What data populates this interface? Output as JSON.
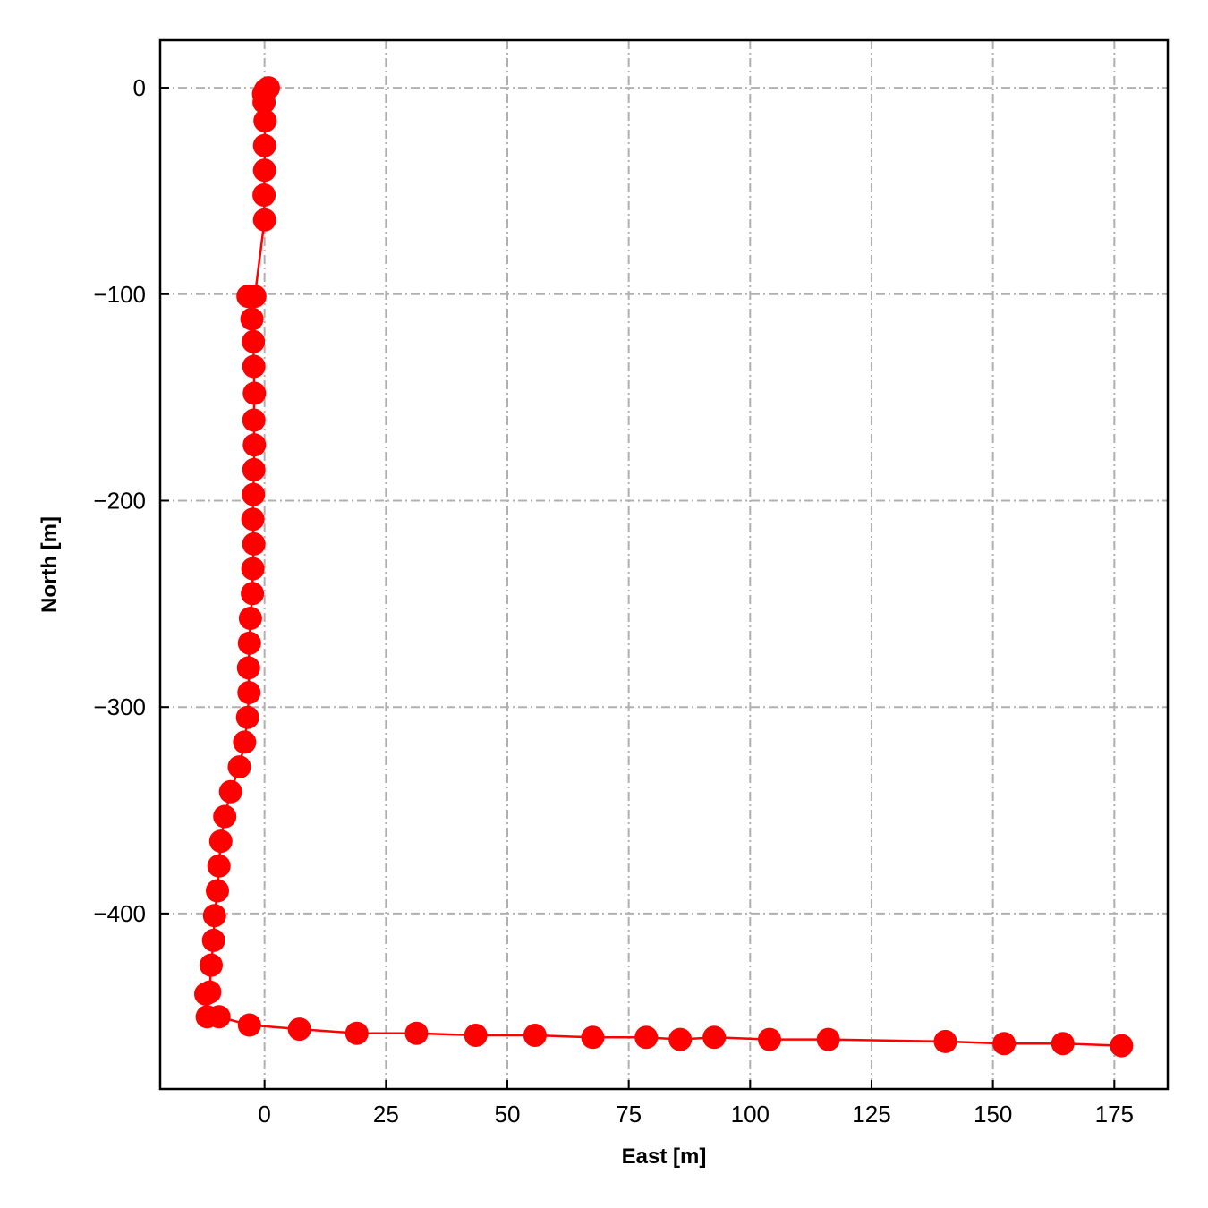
{
  "chart_data": {
    "type": "line",
    "title": "",
    "xlabel": "East [m]",
    "ylabel": "North [m]",
    "xlim": [
      -21.5,
      186
    ],
    "ylim": [
      -485,
      23
    ],
    "x_ticks": [
      0,
      25,
      50,
      75,
      100,
      125,
      150,
      175
    ],
    "y_ticks": [
      0,
      -100,
      -200,
      -300,
      -400
    ],
    "x_tick_labels": [
      "0",
      "25",
      "50",
      "75",
      "100",
      "125",
      "150",
      "175"
    ],
    "y_tick_labels": [
      "0",
      "−100",
      "−200",
      "−300",
      "−400"
    ],
    "grid": true,
    "legend": "none",
    "series": [
      {
        "color": "#ff0000",
        "marker": "circle",
        "x": [
          0.8,
          0.2,
          -0.2,
          -0.1,
          0.1,
          0.0,
          0.0,
          -0.1,
          0.0,
          -2.0,
          -3.4,
          -2.6,
          -2.3,
          -2.2,
          -2.1,
          -2.2,
          -2.1,
          -2.2,
          -2.3,
          -2.4,
          -2.2,
          -2.4,
          -2.5,
          -2.9,
          -3.1,
          -3.3,
          -3.2,
          -3.5,
          -4.1,
          -5.2,
          -7.0,
          -8.2,
          -9.0,
          -9.4,
          -9.7,
          -10.3,
          -10.5,
          -11.0,
          -11.3,
          -12.1,
          -11.8,
          -9.4,
          -3.1,
          7.2,
          19.0,
          31.3,
          43.5,
          55.7,
          67.6,
          78.6,
          85.6,
          92.6,
          104.0,
          116.1,
          140.2,
          152.3,
          164.4,
          176.5
        ],
        "y": [
          0,
          -1,
          -3,
          -7,
          -16,
          -28,
          -40,
          -52,
          -64,
          -101,
          -101,
          -112,
          -123,
          -135,
          -148,
          -161,
          -173,
          -185,
          -197,
          -209,
          -221,
          -233,
          -245,
          -257,
          -269,
          -281,
          -293,
          -305,
          -317,
          -329,
          -341,
          -353,
          -365,
          -377,
          -389,
          -401,
          -413,
          -425,
          -438,
          -439,
          -450,
          -450,
          -454,
          -456,
          -458,
          -458,
          -459,
          -459,
          -460,
          -460,
          -461,
          -460,
          -461,
          -461,
          -462,
          -463,
          -463,
          -464
        ]
      }
    ]
  }
}
